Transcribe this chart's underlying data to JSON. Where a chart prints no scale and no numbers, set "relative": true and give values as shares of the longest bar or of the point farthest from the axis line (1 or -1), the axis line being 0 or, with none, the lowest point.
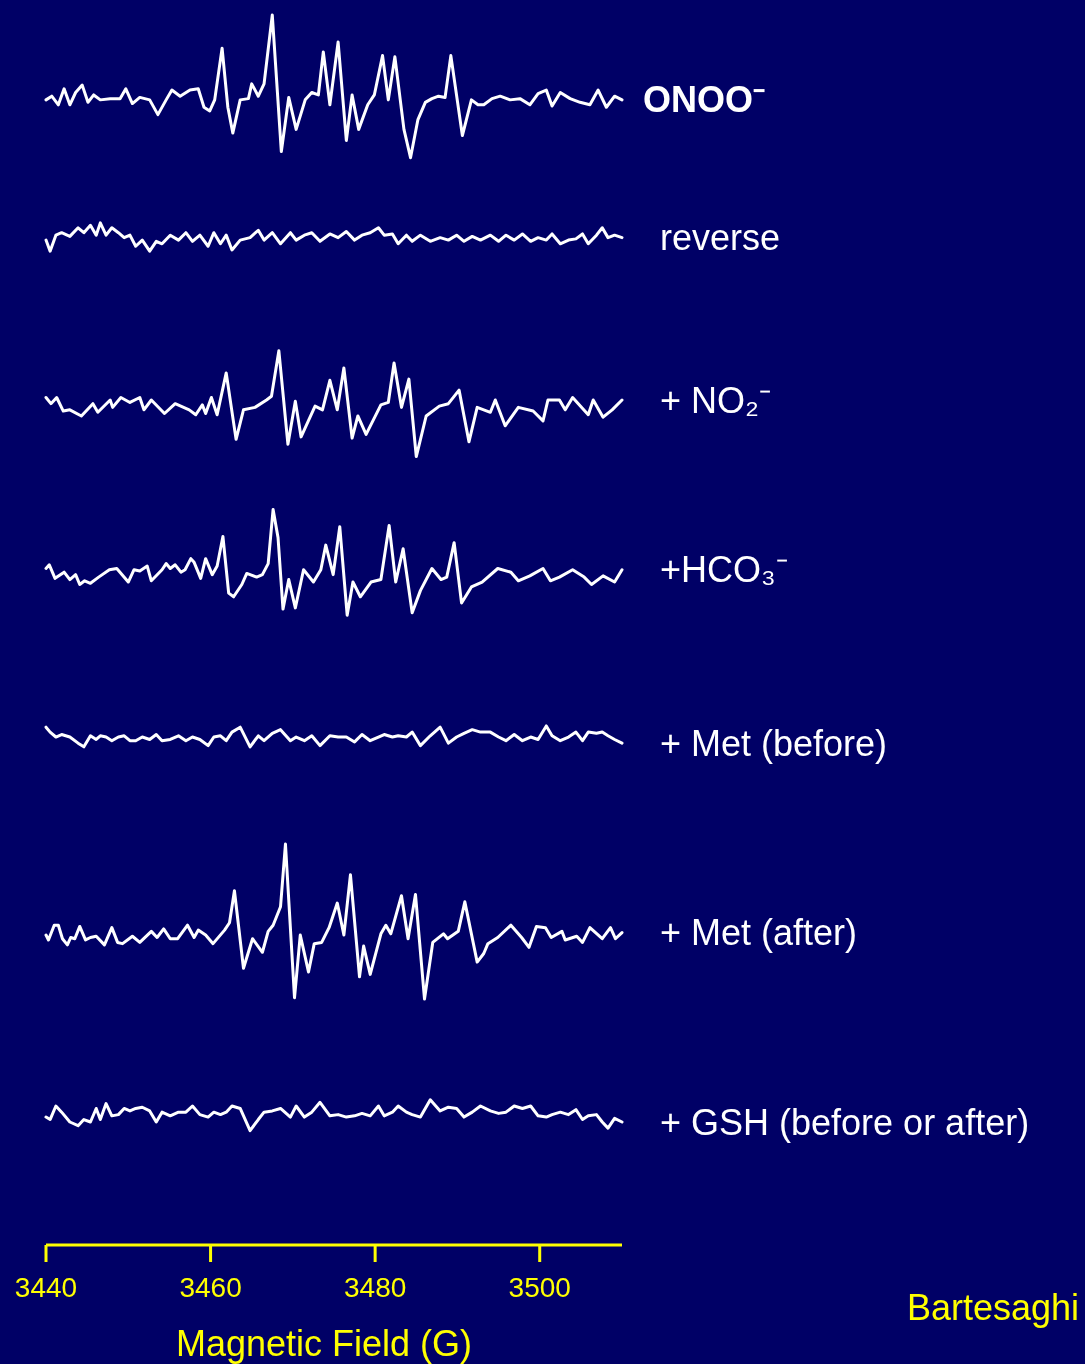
{
  "chart_data": {
    "type": "line",
    "relative": true,
    "xlabel": "Magnetic Field (G)",
    "xlim": [
      3440,
      3510
    ],
    "xticks": [
      3440,
      3460,
      3480,
      3500
    ],
    "annotations": [
      "Bartesaghi"
    ],
    "x": [
      3440,
      3440.5,
      3441.2,
      3441.9,
      3442.9,
      3443.9,
      3444.6,
      3445.4,
      3446.1,
      3446.6,
      3447.3,
      3448,
      3448.8,
      3449.5,
      3450.2,
      3450.9,
      3451.7,
      3452.6,
      3453.4,
      3454.1,
      3455.1,
      3456.1,
      3457,
      3457.8,
      3458.7,
      3459.7,
      3460.4,
      3461.2,
      3461.9,
      3462.6,
      3463.6,
      3464.8,
      3465.8,
      3466.5,
      3467.5,
      3468.5,
      3469.7,
      3470.4,
      3471.4,
      3472.3,
      3473.3,
      3474.5,
      3475.5,
      3476.5,
      3477.5,
      3478.4,
      3479.4,
      3480.4,
      3481.1,
      3482.1,
      3482.8,
      3483.8,
      3484.5,
      3485.5,
      3486.7,
      3487.9,
      3488.9,
      3489.9,
      3490.8,
      3491.8,
      3492.8,
      3494,
      3495,
      3495.9,
      3496.9,
      3497.9,
      3498.9,
      3499.8,
      3500.8,
      3501.5,
      3502.5,
      3503.5,
      3504.4,
      3505.2,
      3505.9,
      3506.9,
      3507.6,
      3508.3,
      3509.1,
      3510
    ],
    "series": [
      {
        "name": "ONOO⁻",
        "color": "#ffffff",
        "x": [
          3440,
          3440.7,
          3441.5,
          3442.2,
          3442.9,
          3443.6,
          3444.4,
          3445.1,
          3445.8,
          3446.6,
          3447.8,
          3449,
          3449.7,
          3450.5,
          3451.4,
          3452.6,
          3453.6,
          3454.6,
          3455.3,
          3456.3,
          3457.5,
          3458.5,
          3459.2,
          3459.9,
          3460.5,
          3461.4,
          3462.1,
          3462.7,
          3463.6,
          3464.6,
          3465,
          3465.8,
          3466.5,
          3467.5,
          3468.6,
          3469.5,
          3470.4,
          3471.5,
          3472.3,
          3473.1,
          3473.7,
          3474.5,
          3475.5,
          3476.5,
          3477.2,
          3478,
          3479.1,
          3479.9,
          3480.9,
          3481.6,
          3482.4,
          3483.5,
          3484.3,
          3485.2,
          3486.1,
          3486.9,
          3487.7,
          3488.5,
          3489.2,
          3490.6,
          3491.7,
          3492.5,
          3493.2,
          3494.2,
          3495.2,
          3496.4,
          3497.6,
          3498.8,
          3499.8,
          3500.8,
          3501.5,
          3502.5,
          3503.7,
          3504.9,
          3506.1,
          3507.1,
          3508.1,
          3509.1,
          3510
        ],
        "values": [
          0.931,
          0.934,
          0.927,
          0.94,
          0.927,
          0.937,
          0.943,
          0.929,
          0.935,
          0.931,
          0.932,
          0.932,
          0.94,
          0.928,
          0.933,
          0.931,
          0.919,
          0.931,
          0.939,
          0.934,
          0.939,
          0.94,
          0.925,
          0.922,
          0.931,
          0.973,
          0.925,
          0.904,
          0.931,
          0.932,
          0.944,
          0.934,
          0.944,
          1,
          0.889,
          0.933,
          0.907,
          0.931,
          0.937,
          0.935,
          0.97,
          0.927,
          0.978,
          0.898,
          0.935,
          0.907,
          0.927,
          0.935,
          0.967,
          0.931,
          0.966,
          0.907,
          0.884,
          0.915,
          0.929,
          0.932,
          0.934,
          0.933,
          0.967,
          0.902,
          0.931,
          0.927,
          0.927,
          0.932,
          0.934,
          0.931,
          0.932,
          0.927,
          0.936,
          0.939,
          0.926,
          0.937,
          0.932,
          0.929,
          0.927,
          0.939,
          0.925,
          0.934,
          0.931
        ]
      },
      {
        "name": "reverse",
        "color": "#ffffff",
        "values": [
          0.817,
          0.808,
          0.821,
          0.823,
          0.82,
          0.827,
          0.823,
          0.829,
          0.821,
          0.831,
          0.821,
          0.827,
          0.823,
          0.819,
          0.821,
          0.812,
          0.817,
          0.808,
          0.816,
          0.814,
          0.821,
          0.817,
          0.823,
          0.816,
          0.821,
          0.812,
          0.823,
          0.814,
          0.821,
          0.809,
          0.817,
          0.819,
          0.825,
          0.817,
          0.823,
          0.814,
          0.823,
          0.817,
          0.821,
          0.823,
          0.816,
          0.822,
          0.819,
          0.824,
          0.817,
          0.821,
          0.823,
          0.827,
          0.821,
          0.822,
          0.814,
          0.821,
          0.816,
          0.821,
          0.816,
          0.819,
          0.817,
          0.821,
          0.816,
          0.82,
          0.817,
          0.821,
          0.816,
          0.821,
          0.817,
          0.822,
          0.816,
          0.819,
          0.817,
          0.822,
          0.814,
          0.817,
          0.818,
          0.822,
          0.814,
          0.821,
          0.827,
          0.819,
          0.821,
          0.819
        ]
      },
      {
        "name": "+ NO₂⁻",
        "color": "#ffffff",
        "x": [
          3440,
          3440.6,
          3441.3,
          3442.1,
          3442.9,
          3444.3,
          3445.7,
          3446.3,
          3447.8,
          3448.1,
          3449.1,
          3450.2,
          3451.4,
          3451.9,
          3452.8,
          3454.4,
          3455.7,
          3457.4,
          3458.2,
          3459,
          3459.4,
          3460.1,
          3460.8,
          3461.9,
          3463.1,
          3464,
          3465.4,
          3466.8,
          3467.4,
          3468.3,
          3469.4,
          3470.3,
          3471,
          3472.7,
          3473.6,
          3474.5,
          3475.4,
          3476.2,
          3477.2,
          3477.9,
          3478.9,
          3480.7,
          3481.6,
          3482.3,
          3483.2,
          3484.1,
          3485,
          3486.2,
          3487.8,
          3488.9,
          3490.2,
          3491.4,
          3492.4,
          3494,
          3494.6,
          3495.8,
          3497.4,
          3499.2,
          3500.4,
          3501,
          3502.4,
          3503.1,
          3504,
          3505.9,
          3506.5,
          3507.7,
          3508.8,
          3510
        ],
        "values": [
          0.689,
          0.684,
          0.689,
          0.678,
          0.679,
          0.674,
          0.684,
          0.677,
          0.687,
          0.681,
          0.689,
          0.685,
          0.689,
          0.679,
          0.687,
          0.676,
          0.684,
          0.679,
          0.675,
          0.683,
          0.676,
          0.689,
          0.675,
          0.709,
          0.655,
          0.679,
          0.681,
          0.687,
          0.69,
          0.727,
          0.651,
          0.686,
          0.657,
          0.682,
          0.679,
          0.703,
          0.679,
          0.713,
          0.656,
          0.674,
          0.659,
          0.683,
          0.685,
          0.717,
          0.681,
          0.704,
          0.641,
          0.674,
          0.682,
          0.684,
          0.695,
          0.653,
          0.681,
          0.677,
          0.687,
          0.666,
          0.681,
          0.678,
          0.67,
          0.687,
          0.687,
          0.679,
          0.689,
          0.675,
          0.687,
          0.673,
          0.679,
          0.687
        ]
      },
      {
        "name": "+HCO₃⁻",
        "color": "#ffffff",
        "x": [
          3440,
          3440.4,
          3441.1,
          3442.2,
          3442.9,
          3443.6,
          3444.1,
          3444.7,
          3445.4,
          3446.4,
          3447.7,
          3448.6,
          3450,
          3450.7,
          3451.4,
          3452.3,
          3452.8,
          3454.1,
          3454.6,
          3455.1,
          3455.7,
          3456.4,
          3456.9,
          3457.6,
          3458,
          3458.8,
          3459.4,
          3460.2,
          3460.8,
          3461.5,
          3462.2,
          3462.8,
          3463.8,
          3464.4,
          3465.6,
          3466.3,
          3467,
          3467.6,
          3468.2,
          3468.8,
          3469.5,
          3470.3,
          3471.3,
          3472.5,
          3473.4,
          3474,
          3474.9,
          3475.7,
          3476.6,
          3477.3,
          3478.2,
          3479.5,
          3480.7,
          3481.7,
          3482.5,
          3483.4,
          3484.5,
          3485.5,
          3486.9,
          3488,
          3488.7,
          3489.6,
          3490.5,
          3491.7,
          3493,
          3494.9,
          3496.5,
          3497.4,
          3498.8,
          3500.4,
          3501.3,
          3502.4,
          3504,
          3505.4,
          3506.3,
          3507.7,
          3509.1,
          3510
        ],
        "values": [
          0.55,
          0.553,
          0.542,
          0.547,
          0.541,
          0.545,
          0.537,
          0.54,
          0.538,
          0.543,
          0.549,
          0.55,
          0.539,
          0.549,
          0.548,
          0.552,
          0.54,
          0.549,
          0.554,
          0.55,
          0.553,
          0.547,
          0.549,
          0.558,
          0.555,
          0.542,
          0.558,
          0.545,
          0.552,
          0.576,
          0.53,
          0.527,
          0.537,
          0.546,
          0.543,
          0.545,
          0.554,
          0.598,
          0.575,
          0.517,
          0.541,
          0.518,
          0.549,
          0.539,
          0.549,
          0.569,
          0.545,
          0.584,
          0.512,
          0.539,
          0.527,
          0.539,
          0.541,
          0.585,
          0.539,
          0.566,
          0.514,
          0.532,
          0.55,
          0.541,
          0.543,
          0.571,
          0.522,
          0.535,
          0.539,
          0.55,
          0.547,
          0.54,
          0.544,
          0.55,
          0.54,
          0.543,
          0.549,
          0.543,
          0.537,
          0.544,
          0.539,
          0.549
        ]
      },
      {
        "name": "+ Met (before)",
        "color": "#ffffff",
        "values": [
          0.421,
          0.417,
          0.413,
          0.415,
          0.413,
          0.408,
          0.405,
          0.414,
          0.411,
          0.414,
          0.413,
          0.41,
          0.413,
          0.414,
          0.41,
          0.41,
          0.413,
          0.411,
          0.415,
          0.41,
          0.411,
          0.414,
          0.41,
          0.413,
          0.411,
          0.406,
          0.413,
          0.414,
          0.41,
          0.417,
          0.421,
          0.405,
          0.414,
          0.41,
          0.416,
          0.419,
          0.41,
          0.413,
          0.41,
          0.414,
          0.406,
          0.414,
          0.413,
          0.413,
          0.409,
          0.415,
          0.41,
          0.413,
          0.415,
          0.413,
          0.414,
          0.413,
          0.417,
          0.406,
          0.414,
          0.421,
          0.408,
          0.413,
          0.416,
          0.419,
          0.417,
          0.417,
          0.413,
          0.41,
          0.415,
          0.41,
          0.413,
          0.411,
          0.422,
          0.414,
          0.41,
          0.413,
          0.417,
          0.41,
          0.417,
          0.416,
          0.417,
          0.414,
          0.411,
          0.408
        ]
      },
      {
        "name": "+ Met (after)",
        "color": "#ffffff",
        "x": [
          3440,
          3440.3,
          3441,
          3441.5,
          3442,
          3442.6,
          3443,
          3443.5,
          3444.1,
          3444.8,
          3445.4,
          3446.1,
          3447.1,
          3448,
          3448.7,
          3449.3,
          3450.5,
          3451.4,
          3452.8,
          3453.5,
          3454.3,
          3455.1,
          3456,
          3457.2,
          3458,
          3458.5,
          3459.4,
          3460.3,
          3461.7,
          3462.3,
          3462.9,
          3464,
          3465.1,
          3466.3,
          3467,
          3467.6,
          3468.5,
          3469.1,
          3470.2,
          3470.9,
          3471.9,
          3472.6,
          3473.5,
          3474.4,
          3475.4,
          3476.2,
          3477,
          3478.1,
          3478.6,
          3479.4,
          3480.7,
          3481.3,
          3481.9,
          3483.2,
          3484,
          3484.9,
          3486,
          3487,
          3488.3,
          3488.8,
          3490.1,
          3490.9,
          3492.4,
          3493.2,
          3493.7,
          3494.9,
          3496.5,
          3497.8,
          3498.7,
          3499.6,
          3500.7,
          3501.4,
          3502.7,
          3503.1,
          3504.5,
          3505.2,
          3506.1,
          3507.6,
          3508.6,
          3509.2,
          3510
        ],
        "values": [
          0.252,
          0.248,
          0.26,
          0.26,
          0.249,
          0.244,
          0.25,
          0.249,
          0.259,
          0.248,
          0.25,
          0.251,
          0.244,
          0.258,
          0.246,
          0.245,
          0.251,
          0.246,
          0.255,
          0.25,
          0.257,
          0.249,
          0.249,
          0.26,
          0.25,
          0.256,
          0.252,
          0.245,
          0.256,
          0.262,
          0.288,
          0.225,
          0.249,
          0.238,
          0.255,
          0.26,
          0.275,
          0.326,
          0.201,
          0.252,
          0.222,
          0.245,
          0.246,
          0.258,
          0.278,
          0.252,
          0.301,
          0.218,
          0.243,
          0.22,
          0.253,
          0.26,
          0.253,
          0.284,
          0.249,
          0.285,
          0.2,
          0.246,
          0.253,
          0.249,
          0.255,
          0.279,
          0.23,
          0.237,
          0.245,
          0.25,
          0.26,
          0.25,
          0.242,
          0.259,
          0.258,
          0.25,
          0.255,
          0.248,
          0.251,
          0.246,
          0.258,
          0.249,
          0.258,
          0.249,
          0.254
        ]
      },
      {
        "name": "+ GSH (before or after)",
        "color": "#ffffff",
        "values": [
          0.104,
          0.102,
          0.113,
          0.108,
          0.1,
          0.097,
          0.102,
          0.1,
          0.111,
          0.102,
          0.115,
          0.105,
          0.106,
          0.111,
          0.109,
          0.111,
          0.112,
          0.109,
          0.1,
          0.108,
          0.105,
          0.108,
          0.108,
          0.113,
          0.106,
          0.104,
          0.108,
          0.106,
          0.108,
          0.113,
          0.111,
          0.093,
          0.102,
          0.108,
          0.109,
          0.111,
          0.104,
          0.113,
          0.104,
          0.108,
          0.116,
          0.105,
          0.106,
          0.104,
          0.105,
          0.107,
          0.105,
          0.113,
          0.105,
          0.108,
          0.113,
          0.108,
          0.106,
          0.104,
          0.118,
          0.109,
          0.112,
          0.111,
          0.104,
          0.108,
          0.113,
          0.109,
          0.107,
          0.108,
          0.113,
          0.111,
          0.113,
          0.105,
          0.104,
          0.106,
          0.108,
          0.106,
          0.11,
          0.102,
          0.105,
          0.106,
          0.1,
          0.095,
          0.103,
          0.1
        ]
      }
    ]
  }
}
